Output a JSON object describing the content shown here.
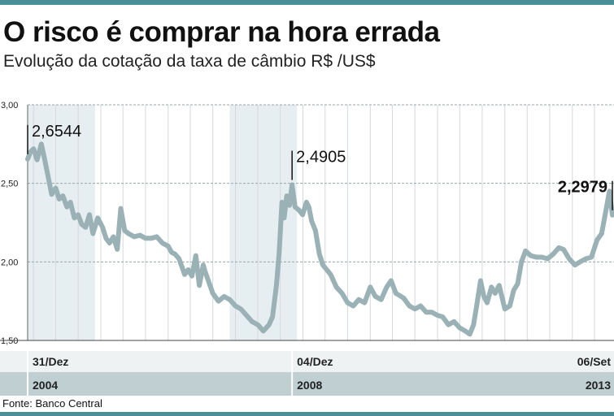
{
  "header": {
    "title": "O risco é comprar na hora errada",
    "subtitle": "Evolução da cotação da taxa de câmbio R$ /US$"
  },
  "footer": {
    "source": "Fonte: Banco Central"
  },
  "colors": {
    "accent": "#4a8e97",
    "line": "#9ab1b5",
    "shade": "#e7eef1",
    "band1": "#eef2f3",
    "band2": "#bfcfd2"
  },
  "chart_data": {
    "type": "line",
    "title": "O risco é comprar na hora errada",
    "subtitle": "Evolução da cotação da taxa de câmbio R$ /US$",
    "xlabel": "",
    "ylabel": "",
    "xlim": [
      "2004-12-31",
      "2013-09-06"
    ],
    "ylim": [
      1.5,
      3.0
    ],
    "yticks": [
      "1,50",
      "2,00",
      "2,50",
      "3,00"
    ],
    "grid": true,
    "x_markers": [
      {
        "date_label": "31/Dez",
        "year_label": "2004",
        "x": "2004-12-31"
      },
      {
        "date_label": "04/Dez",
        "year_label": "2008",
        "x": "2008-12-04"
      },
      {
        "date_label": "06/Set",
        "year_label": "2013",
        "x": "2013-09-06"
      }
    ],
    "annotations": [
      {
        "label": "2,6544",
        "x": "2004-12-31",
        "y": 2.6544,
        "bold": false
      },
      {
        "label": "2,4905",
        "x": "2008-12-04",
        "y": 2.4905,
        "bold": false
      },
      {
        "label": "2,2979",
        "x": "2013-09-06",
        "y": 2.2979,
        "bold": true
      }
    ],
    "series": [
      {
        "x": [
          "2004-12-31",
          "2005-01-15",
          "2005-02-01",
          "2005-02-20",
          "2005-03-15",
          "2005-04-01",
          "2005-04-20",
          "2005-05-10",
          "2005-06-01",
          "2005-06-20",
          "2005-07-10",
          "2005-08-01",
          "2005-08-20",
          "2005-09-10",
          "2005-10-01",
          "2005-10-20",
          "2005-11-10",
          "2005-12-01",
          "2005-12-20",
          "2006-01-15",
          "2006-02-10",
          "2006-03-01",
          "2006-03-20",
          "2006-04-10",
          "2006-05-01",
          "2006-05-20",
          "2006-06-10",
          "2006-07-01",
          "2006-08-01",
          "2006-09-01",
          "2006-10-01",
          "2006-11-01",
          "2006-12-01",
          "2007-01-01",
          "2007-02-01",
          "2007-02-20",
          "2007-03-10",
          "2007-04-01",
          "2007-05-01",
          "2007-05-20",
          "2007-06-10",
          "2007-07-01",
          "2007-07-20",
          "2007-08-10",
          "2007-08-20",
          "2007-09-10",
          "2007-10-01",
          "2007-11-01",
          "2007-12-01",
          "2008-01-01",
          "2008-02-01",
          "2008-03-01",
          "2008-04-01",
          "2008-05-01",
          "2008-06-01",
          "2008-07-01",
          "2008-08-01",
          "2008-08-20",
          "2008-09-10",
          "2008-09-25",
          "2008-10-10",
          "2008-10-22",
          "2008-11-05",
          "2008-11-20",
          "2008-12-04",
          "2008-12-20",
          "2009-01-10",
          "2009-01-30",
          "2009-02-20",
          "2009-03-05",
          "2009-03-20",
          "2009-04-10",
          "2009-05-01",
          "2009-05-20",
          "2009-06-10",
          "2009-07-01",
          "2009-08-01",
          "2009-09-01",
          "2009-10-01",
          "2009-11-01",
          "2009-12-01",
          "2010-01-01",
          "2010-02-01",
          "2010-03-01",
          "2010-04-01",
          "2010-05-01",
          "2010-05-25",
          "2010-06-20",
          "2010-08-01",
          "2010-09-01",
          "2010-10-01",
          "2010-11-01",
          "2010-12-01",
          "2011-01-01",
          "2011-02-01",
          "2011-03-01",
          "2011-04-01",
          "2011-05-01",
          "2011-06-01",
          "2011-07-01",
          "2011-07-26",
          "2011-08-15",
          "2011-09-01",
          "2011-09-22",
          "2011-10-10",
          "2011-10-28",
          "2011-11-20",
          "2011-12-10",
          "2012-01-01",
          "2012-02-01",
          "2012-02-28",
          "2012-03-20",
          "2012-04-10",
          "2012-05-01",
          "2012-05-23",
          "2012-06-20",
          "2012-07-20",
          "2012-08-20",
          "2012-09-20",
          "2012-10-20",
          "2012-11-20",
          "2012-12-15",
          "2013-01-15",
          "2013-02-15",
          "2013-03-15",
          "2013-04-15",
          "2013-05-15",
          "2013-06-15",
          "2013-07-10",
          "2013-08-01",
          "2013-08-21",
          "2013-09-06"
        ],
        "values": [
          2.6544,
          2.7,
          2.72,
          2.65,
          2.75,
          2.66,
          2.55,
          2.43,
          2.47,
          2.4,
          2.42,
          2.35,
          2.38,
          2.28,
          2.3,
          2.24,
          2.22,
          2.3,
          2.18,
          2.28,
          2.22,
          2.15,
          2.12,
          2.16,
          2.08,
          2.34,
          2.2,
          2.18,
          2.16,
          2.17,
          2.15,
          2.15,
          2.16,
          2.12,
          2.1,
          2.06,
          2.05,
          2.02,
          1.92,
          1.95,
          1.91,
          2.04,
          1.85,
          1.98,
          1.94,
          1.87,
          1.8,
          1.75,
          1.78,
          1.76,
          1.72,
          1.7,
          1.66,
          1.62,
          1.6,
          1.56,
          1.6,
          1.65,
          1.85,
          2.06,
          2.38,
          2.28,
          2.42,
          2.36,
          2.4905,
          2.35,
          2.33,
          2.3,
          2.38,
          2.35,
          2.26,
          2.2,
          2.05,
          1.98,
          1.95,
          1.92,
          1.84,
          1.8,
          1.74,
          1.72,
          1.76,
          1.74,
          1.84,
          1.78,
          1.76,
          1.84,
          1.88,
          1.8,
          1.77,
          1.72,
          1.7,
          1.72,
          1.68,
          1.68,
          1.66,
          1.65,
          1.6,
          1.62,
          1.58,
          1.56,
          1.54,
          1.6,
          1.72,
          1.88,
          1.78,
          1.74,
          1.84,
          1.8,
          1.85,
          1.7,
          1.72,
          1.82,
          1.86,
          2.0,
          2.07,
          2.04,
          2.03,
          2.03,
          2.02,
          2.05,
          2.09,
          2.08,
          2.02,
          1.98,
          2.0,
          2.02,
          2.03,
          2.14,
          2.18,
          2.32,
          2.45,
          2.2979
        ]
      }
    ]
  }
}
